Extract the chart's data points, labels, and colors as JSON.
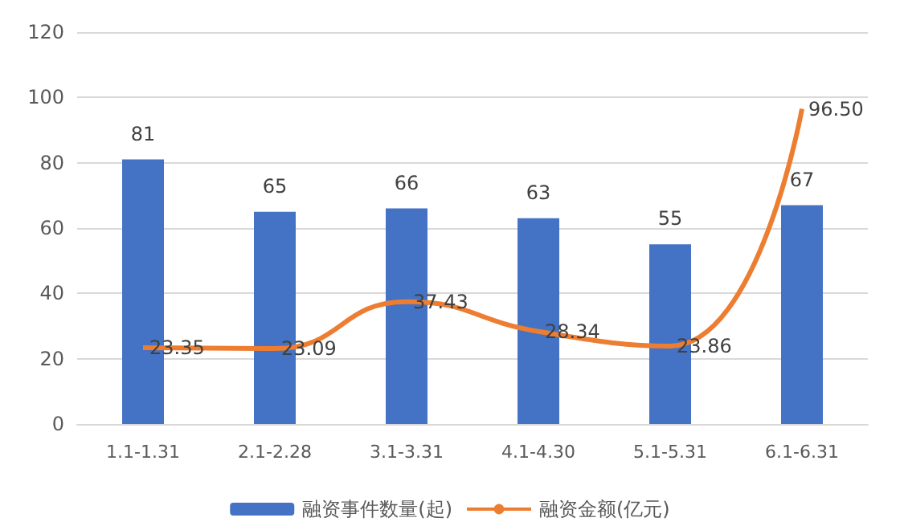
{
  "chart_data": {
    "type": "bar",
    "categories": [
      "1.1-1.31",
      "2.1-2.28",
      "3.1-3.31",
      "4.1-4.30",
      "5.1-5.31",
      "6.1-6.31"
    ],
    "series": [
      {
        "name": "融资事件数量(起)",
        "color": "#4472c4",
        "values": [
          81,
          65,
          66,
          63,
          55,
          67
        ],
        "value_labels": [
          "81",
          "65",
          "66",
          "63",
          "55",
          "67"
        ]
      },
      {
        "name": "融资金额(亿元)",
        "type": "line",
        "color": "#ed7d31",
        "values": [
          23.35,
          23.09,
          37.43,
          28.34,
          23.86,
          96.5
        ],
        "value_labels": [
          "23.35",
          "23.09",
          "37.43",
          "28.34",
          "23.86",
          "96.50"
        ],
        "marker": "none"
      }
    ],
    "ylim": [
      0,
      120
    ],
    "yticks": [
      0,
      20,
      40,
      60,
      80,
      100,
      120
    ],
    "grid": "y",
    "legend": "bottom"
  }
}
